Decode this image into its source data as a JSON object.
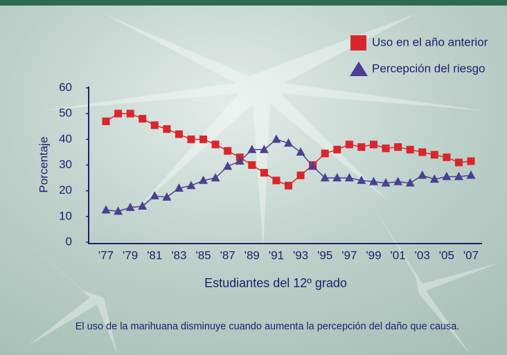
{
  "chart_data": {
    "type": "line",
    "y_label": "Porcentaje",
    "x_label": "Estudiantes del 12º grado",
    "caption": "El uso de la marihuana disminuye cuando aumenta la percepción del daño que causa.",
    "categories": [
      "'77",
      null,
      "'79",
      null,
      "'81",
      null,
      "'83",
      null,
      "'85",
      null,
      "'87",
      null,
      "'89",
      null,
      "'91",
      null,
      "'93",
      null,
      "'95",
      null,
      "'97",
      null,
      "'99",
      null,
      "'01",
      null,
      "'03",
      null,
      "'05",
      null,
      "'07"
    ],
    "series": [
      {
        "name": "Uso en el año anterior",
        "color": "#d9262c",
        "marker": "square",
        "values": [
          47,
          50,
          50,
          48,
          45.5,
          44,
          42,
          40,
          40,
          38,
          35.5,
          33,
          30,
          27,
          24,
          22,
          26,
          30,
          34.5,
          36,
          38,
          37,
          38,
          36.5,
          37,
          36,
          35,
          34,
          33,
          31,
          31.5
        ]
      },
      {
        "name": "Percepción del riesgo",
        "color": "#4b3f91",
        "marker": "triangle",
        "values": [
          12.5,
          12,
          13.5,
          14,
          18,
          17.5,
          21,
          22,
          24,
          25,
          29.5,
          31.5,
          36,
          36,
          40,
          38.5,
          35,
          29.5,
          25,
          25,
          25,
          24,
          23.5,
          23,
          23.5,
          23,
          26,
          24.5,
          25.5,
          25.5,
          26
        ]
      }
    ],
    "ylim": [
      0,
      60
    ],
    "yticks": [
      0,
      10,
      20,
      30,
      40,
      50,
      60
    ],
    "legend": "upper right",
    "grid": false
  }
}
